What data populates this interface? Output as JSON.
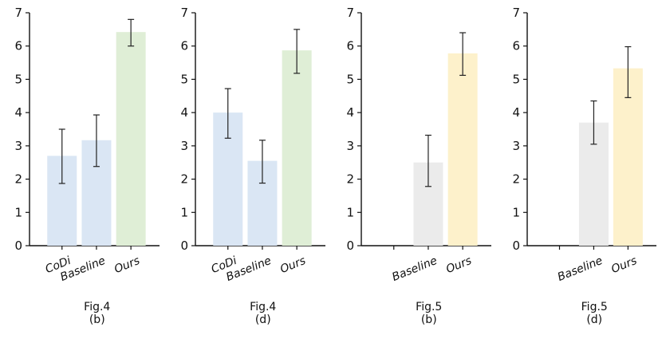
{
  "colors": {
    "blue": "#dae6f4",
    "green": "#dfeed6",
    "gray": "#ebebeb",
    "yellow": "#fdf1cb"
  },
  "chart_data": [
    {
      "type": "bar",
      "caption": [
        "Fig.4",
        "(b)"
      ],
      "categories": [
        "CoDi",
        "Baseline",
        "Ours"
      ],
      "values": [
        2.7,
        3.17,
        6.42
      ],
      "errors": [
        [
          1.87,
          3.5
        ],
        [
          2.38,
          3.93
        ],
        [
          6.0,
          6.8
        ]
      ],
      "colors": [
        "blue",
        "blue",
        "green"
      ],
      "ylim": [
        0,
        7
      ],
      "yticks": [
        0,
        1,
        2,
        3,
        4,
        5,
        6,
        7
      ],
      "xlabel": "",
      "ylabel": ""
    },
    {
      "type": "bar",
      "caption": [
        "Fig.4",
        "(d)"
      ],
      "categories": [
        "CoDi",
        "Baseline",
        "Ours"
      ],
      "values": [
        4.0,
        2.55,
        5.87
      ],
      "errors": [
        [
          3.23,
          4.72
        ],
        [
          1.88,
          3.17
        ],
        [
          5.18,
          6.5
        ]
      ],
      "colors": [
        "blue",
        "blue",
        "green"
      ],
      "ylim": [
        0,
        7
      ],
      "yticks": [
        0,
        1,
        2,
        3,
        4,
        5,
        6,
        7
      ],
      "xlabel": "",
      "ylabel": ""
    },
    {
      "type": "bar",
      "caption": [
        "Fig.5",
        "(b)"
      ],
      "categories": [
        "",
        "Baseline",
        "Ours"
      ],
      "values": [
        null,
        2.5,
        5.78
      ],
      "errors": [
        null,
        [
          1.78,
          3.32
        ],
        [
          5.12,
          6.4
        ]
      ],
      "colors": [
        "gray",
        "gray",
        "yellow"
      ],
      "ylim": [
        0,
        7
      ],
      "yticks": [
        0,
        1,
        2,
        3,
        4,
        5,
        6,
        7
      ],
      "xlabel": "",
      "ylabel": ""
    },
    {
      "type": "bar",
      "caption": [
        "Fig.5",
        "(d)"
      ],
      "categories": [
        "",
        "Baseline",
        "Ours"
      ],
      "values": [
        null,
        3.7,
        5.33
      ],
      "errors": [
        null,
        [
          3.05,
          4.35
        ],
        [
          4.45,
          5.98
        ]
      ],
      "colors": [
        "gray",
        "gray",
        "yellow"
      ],
      "ylim": [
        0,
        7
      ],
      "yticks": [
        0,
        1,
        2,
        3,
        4,
        5,
        6,
        7
      ],
      "xlabel": "",
      "ylabel": ""
    }
  ]
}
